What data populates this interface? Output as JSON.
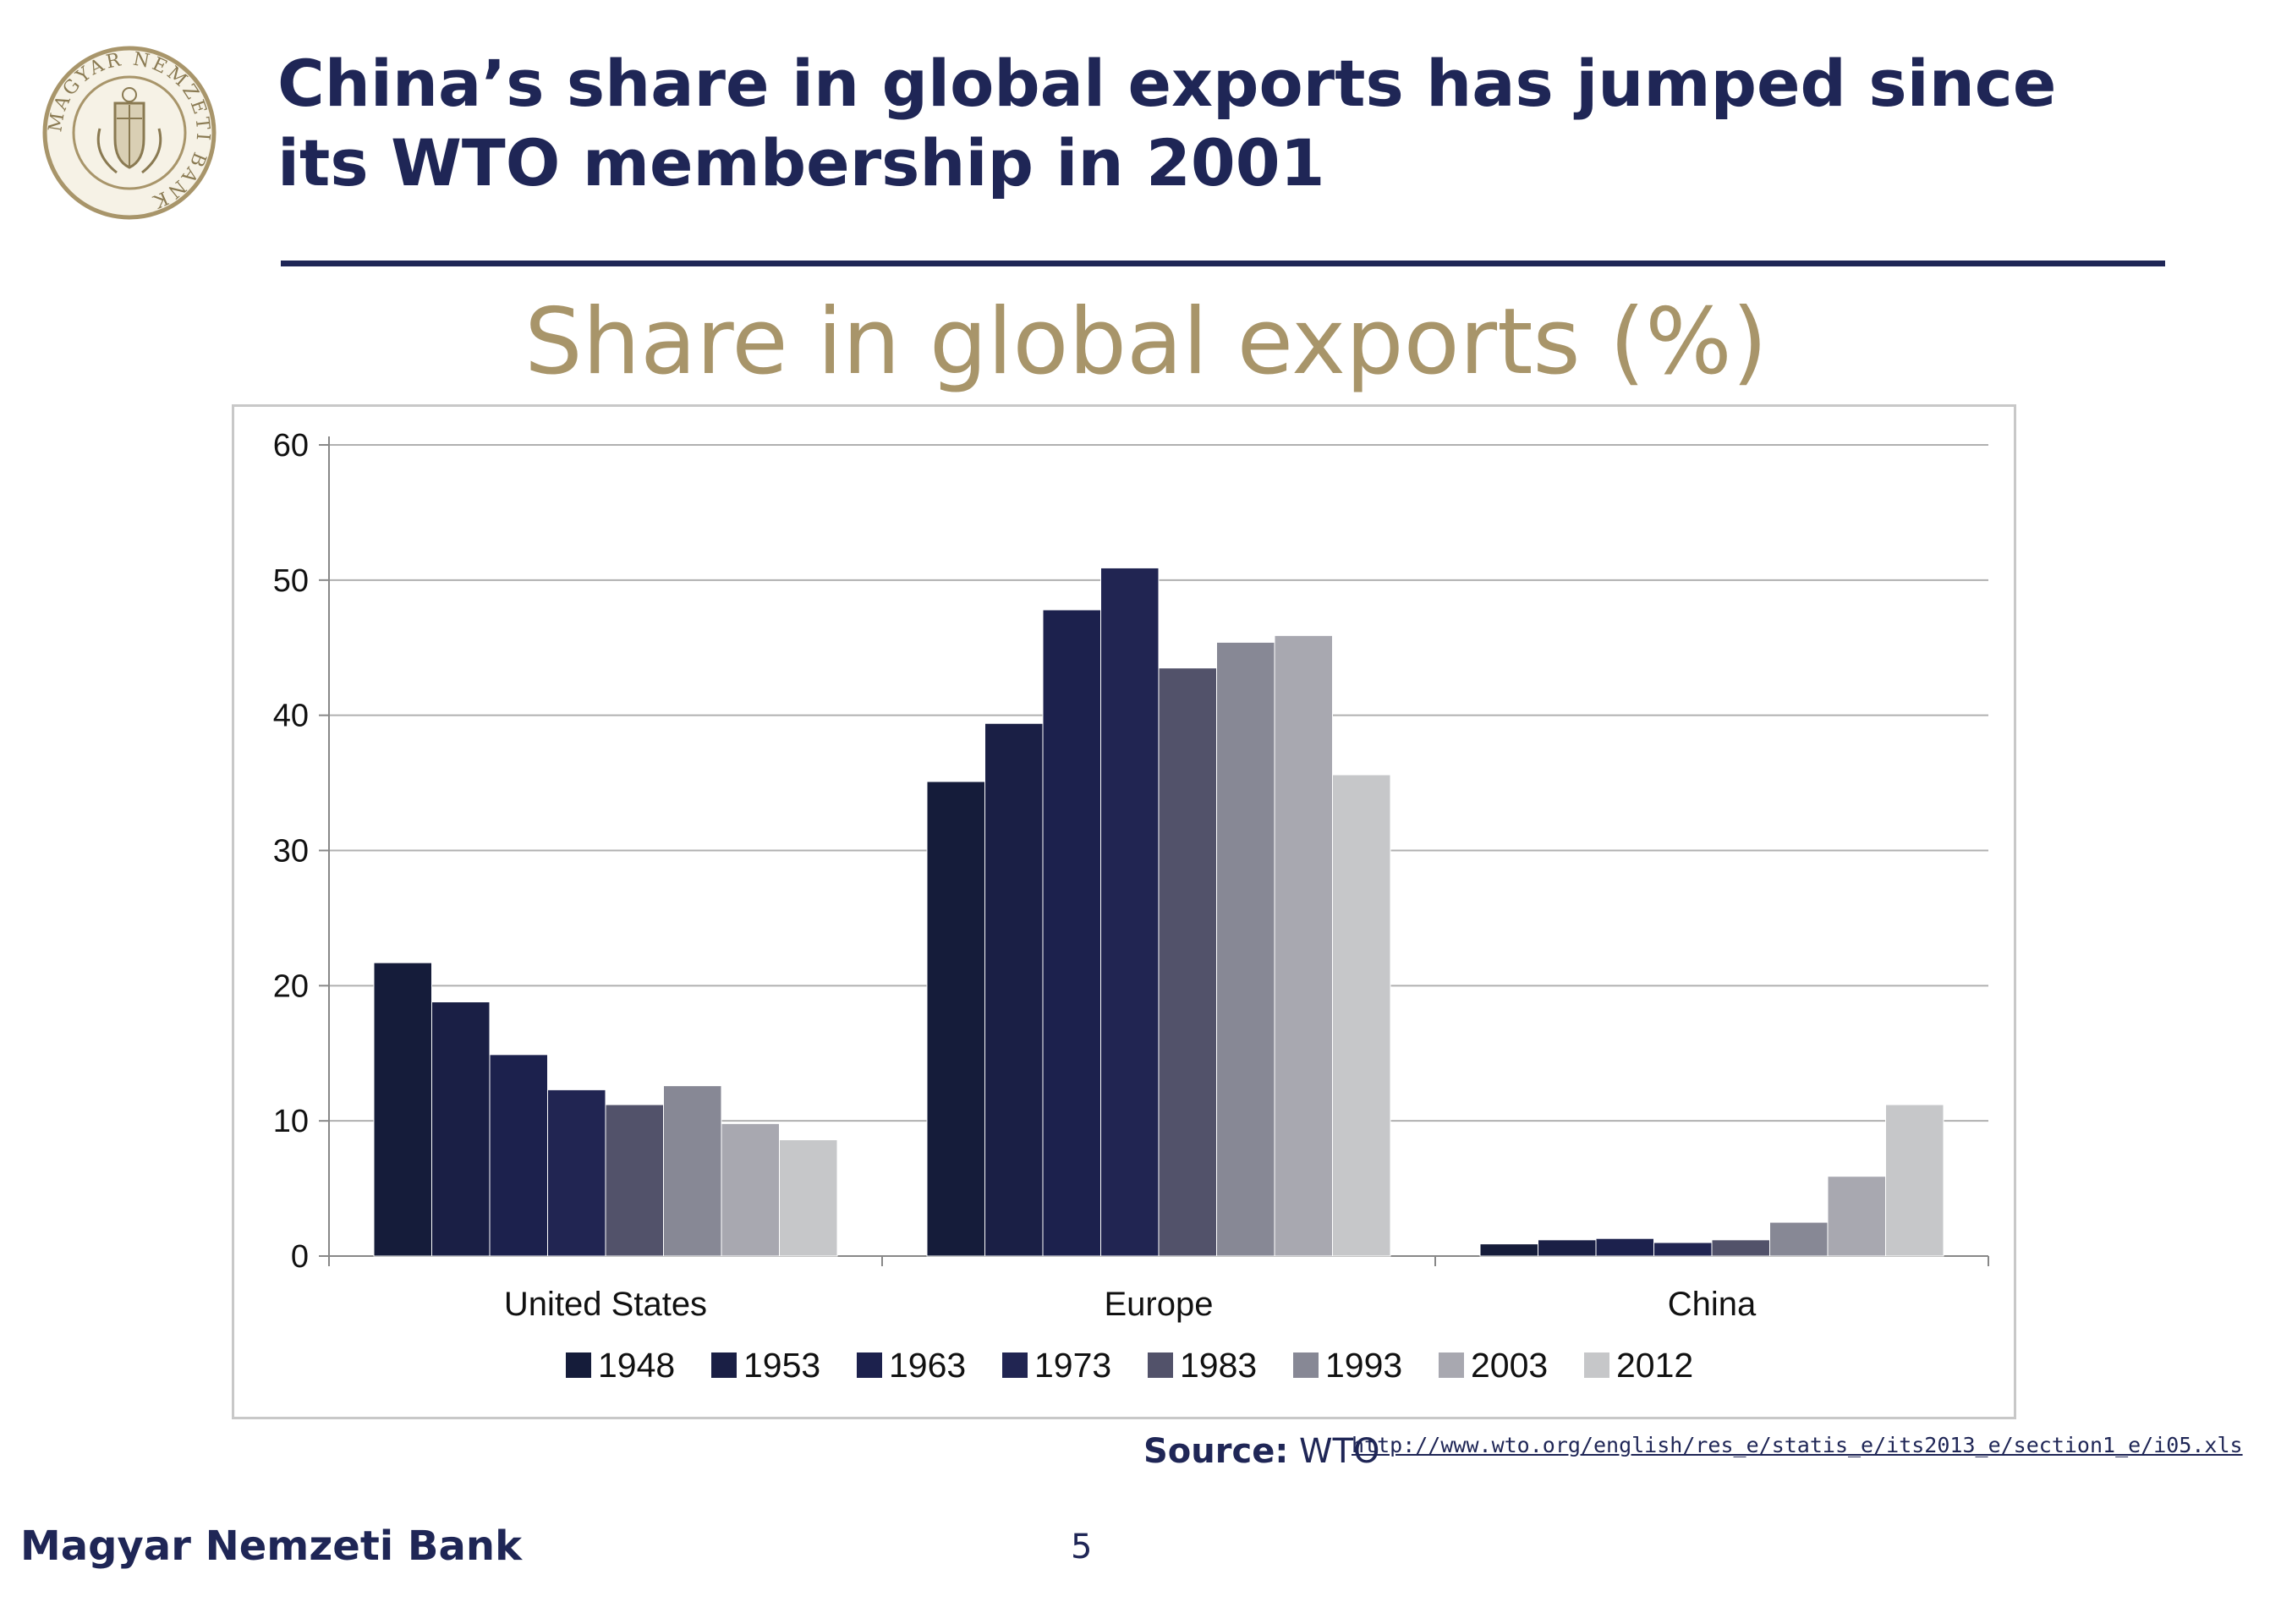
{
  "slide": {
    "title_line1": "China’s share in global exports has jumped since",
    "title_line2": "its WTO membership in 2001",
    "logo_text": "MAGYAR NEMZETI BANK",
    "source_label": "Source:",
    "source_name": "WTO",
    "source_url": "http://www.wto.org/english/res_e/statis_e/its2013_e/section1_e/i05.xls",
    "footer_bank": "Magyar Nemzeti Bank",
    "page_number": "5"
  },
  "colors": {
    "title": "#1f2656",
    "chart_title": "#a8956a",
    "gridline": "#b0b0b0"
  },
  "chart_data": {
    "type": "bar",
    "title": "Share in global exports (%)",
    "xlabel": "",
    "ylabel": "",
    "ylim": [
      0,
      60
    ],
    "yticks": [
      0,
      10,
      20,
      30,
      40,
      50,
      60
    ],
    "grid": true,
    "legend_position": "bottom",
    "categories": [
      "United States",
      "Europe",
      "China"
    ],
    "series": [
      {
        "name": "1948",
        "color": "#151c3a",
        "values": [
          21.7,
          35.1,
          0.9
        ]
      },
      {
        "name": "1953",
        "color": "#1a1f45",
        "values": [
          18.8,
          39.4,
          1.2
        ]
      },
      {
        "name": "1963",
        "color": "#1c214d",
        "values": [
          14.9,
          47.8,
          1.3
        ]
      },
      {
        "name": "1973",
        "color": "#212552",
        "values": [
          12.3,
          50.9,
          1.0
        ]
      },
      {
        "name": "1983",
        "color": "#52526a",
        "values": [
          11.2,
          43.5,
          1.2
        ]
      },
      {
        "name": "1993",
        "color": "#878895",
        "values": [
          12.6,
          45.4,
          2.5
        ]
      },
      {
        "name": "2003",
        "color": "#a8a8b0",
        "values": [
          9.8,
          45.9,
          5.9
        ]
      },
      {
        "name": "2012",
        "color": "#c6c7c9",
        "values": [
          8.6,
          35.6,
          11.2
        ]
      }
    ]
  }
}
